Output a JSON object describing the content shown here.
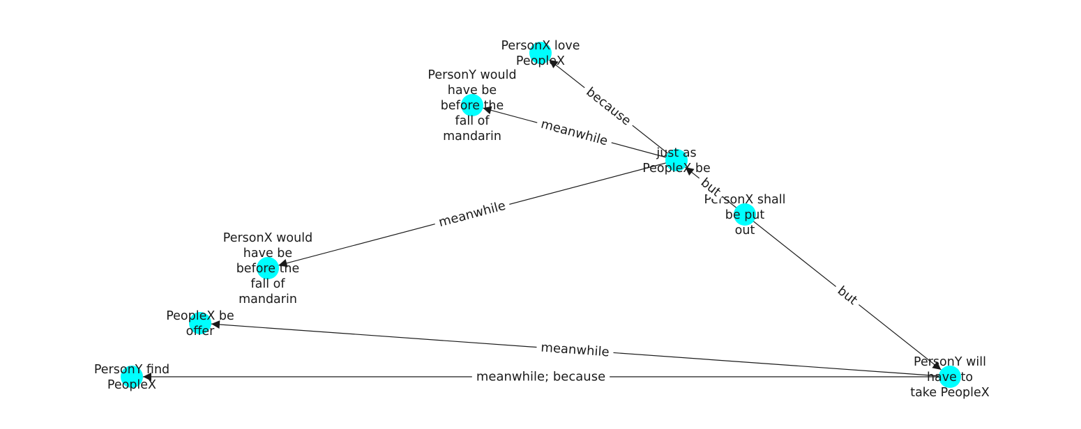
{
  "diagram": {
    "type": "directed-graph",
    "node_color": "#00ffff",
    "edge_color": "#1a1a1a",
    "nodes": [
      {
        "id": "n_love",
        "label": "PersonX love\nPeopleX"
      },
      {
        "id": "n_y_would",
        "label": "PersonY would\nhave be\nbefore the\nfall of\nmandarin"
      },
      {
        "id": "n_justas",
        "label": "just as\nPeopleX be"
      },
      {
        "id": "n_shall",
        "label": "PersonX shall\nbe put\nout"
      },
      {
        "id": "n_x_would",
        "label": "PersonX would\nhave be\nbefore the\nfall of\nmandarin"
      },
      {
        "id": "n_offer",
        "label": "PeopleX be\noffer"
      },
      {
        "id": "n_find",
        "label": "PersonY find\nPeopleX"
      },
      {
        "id": "n_take",
        "label": "PersonY will\nhave to\ntake PeopleX"
      }
    ],
    "edges": [
      {
        "from": "n_justas",
        "to": "n_love",
        "label": "because"
      },
      {
        "from": "n_justas",
        "to": "n_y_would",
        "label": "meanwhile"
      },
      {
        "from": "n_justas",
        "to": "n_x_would",
        "label": "meanwhile"
      },
      {
        "from": "n_shall",
        "to": "n_justas",
        "label": "but"
      },
      {
        "from": "n_shall",
        "to": "n_take",
        "label": "but"
      },
      {
        "from": "n_take",
        "to": "n_offer",
        "label": "meanwhile"
      },
      {
        "from": "n_take",
        "to": "n_find",
        "label": "meanwhile;  because"
      }
    ]
  }
}
